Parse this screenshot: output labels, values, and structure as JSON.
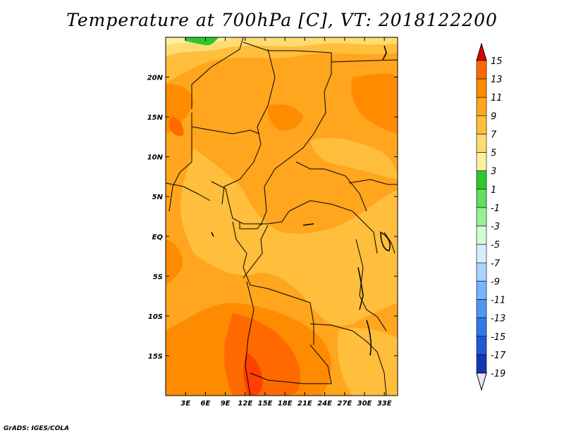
{
  "title": "Temperature at 700hPa [C], VT: 2018122200",
  "footer": "GrADS: IGES/COLA",
  "map": {
    "lon_range": [
      0,
      35
    ],
    "lat_range": [
      -20,
      25
    ],
    "lon_ticks": [
      "3E",
      "6E",
      "9E",
      "12E",
      "15E",
      "18E",
      "21E",
      "24E",
      "27E",
      "30E",
      "33E"
    ],
    "lon_values": [
      3,
      6,
      9,
      12,
      15,
      18,
      21,
      24,
      27,
      30,
      33
    ],
    "lat_ticks": [
      "20N",
      "15N",
      "10N",
      "5N",
      "EQ",
      "5S",
      "10S",
      "15S"
    ],
    "lat_values": [
      20,
      15,
      10,
      5,
      0,
      -5,
      -10,
      -15
    ]
  },
  "colorbar": {
    "labels": [
      "15",
      "13",
      "11",
      "9",
      "7",
      "5",
      "3",
      "1",
      "-1",
      "-3",
      "-5",
      "-7",
      "-9",
      "-11",
      "-13",
      "-15",
      "-17",
      "-19"
    ],
    "colors": [
      "#ff4000",
      "#ff6a00",
      "#ff8c00",
      "#ffa51e",
      "#ffbe3c",
      "#ffdc73",
      "#fff0a0",
      "#2ec72e",
      "#5fe05f",
      "#97f097",
      "#d2fcd2",
      "#d7ecff",
      "#a8d2ff",
      "#78b4ff",
      "#4c96f5",
      "#3278e6",
      "#1e5ad2",
      "#1436b4",
      "#00007d"
    ],
    "top_arrow_color": "#dd0000",
    "bottom_arrow_color": "#e6e6fa"
  }
}
